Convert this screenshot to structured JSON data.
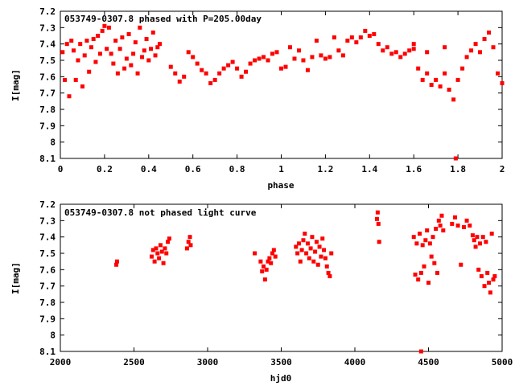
{
  "chart_data": [
    {
      "type": "scatter",
      "title": "053749-0307.8 phased with P=205.00day",
      "xlabel": "phase",
      "ylabel": "I[mag]",
      "xlim": [
        0,
        2
      ],
      "ylim": [
        7.2,
        8.1
      ],
      "y_inverted": true,
      "xticks": [
        0,
        0.2,
        0.4,
        0.6,
        0.8,
        1,
        1.2,
        1.4,
        1.6,
        1.8,
        2
      ],
      "xtick_labels": [
        "0",
        "0.2",
        "0.4",
        "0.6",
        "0.8",
        "1",
        "1.2",
        "1.4",
        "1.6",
        "1.8",
        "2"
      ],
      "yticks": [
        7.2,
        7.3,
        7.4,
        7.5,
        7.6,
        7.7,
        7.8,
        7.9,
        8,
        8.1
      ],
      "ytick_labels": [
        "7.2",
        "7.3",
        "7.4",
        "7.5",
        "7.6",
        "7.7",
        "7.8",
        "7.9",
        "8",
        "8.1"
      ],
      "grid": false,
      "marker_color": "#ff0000",
      "series": [
        {
          "points": [
            [
              0.01,
              7.45
            ],
            [
              0.02,
              7.62
            ],
            [
              0.03,
              7.4
            ],
            [
              0.04,
              7.72
            ],
            [
              0.05,
              7.38
            ],
            [
              0.06,
              7.44
            ],
            [
              0.07,
              7.62
            ],
            [
              0.08,
              7.5
            ],
            [
              0.09,
              7.4
            ],
            [
              0.1,
              7.66
            ],
            [
              0.11,
              7.47
            ],
            [
              0.12,
              7.38
            ],
            [
              0.13,
              7.57
            ],
            [
              0.14,
              7.42
            ],
            [
              0.15,
              7.37
            ],
            [
              0.16,
              7.51
            ],
            [
              0.17,
              7.35
            ],
            [
              0.18,
              7.46
            ],
            [
              0.19,
              7.32
            ],
            [
              0.2,
              7.29
            ],
            [
              0.21,
              7.43
            ],
            [
              0.22,
              7.3
            ],
            [
              0.23,
              7.46
            ],
            [
              0.24,
              7.52
            ],
            [
              0.25,
              7.38
            ],
            [
              0.26,
              7.58
            ],
            [
              0.27,
              7.43
            ],
            [
              0.28,
              7.36
            ],
            [
              0.29,
              7.55
            ],
            [
              0.3,
              7.49
            ],
            [
              0.31,
              7.34
            ],
            [
              0.32,
              7.53
            ],
            [
              0.33,
              7.46
            ],
            [
              0.34,
              7.39
            ],
            [
              0.35,
              7.58
            ],
            [
              0.36,
              7.3
            ],
            [
              0.37,
              7.48
            ],
            [
              0.38,
              7.44
            ],
            [
              0.39,
              7.37
            ],
            [
              0.4,
              7.5
            ],
            [
              0.41,
              7.43
            ],
            [
              0.42,
              7.33
            ],
            [
              0.43,
              7.47
            ],
            [
              0.44,
              7.42
            ],
            [
              0.45,
              7.4
            ],
            [
              0.5,
              7.54
            ],
            [
              0.52,
              7.58
            ],
            [
              0.54,
              7.63
            ],
            [
              0.56,
              7.6
            ],
            [
              0.58,
              7.45
            ],
            [
              0.6,
              7.48
            ],
            [
              0.62,
              7.52
            ],
            [
              0.64,
              7.56
            ],
            [
              0.66,
              7.58
            ],
            [
              0.68,
              7.64
            ],
            [
              0.7,
              7.62
            ],
            [
              0.72,
              7.58
            ],
            [
              0.74,
              7.55
            ],
            [
              0.76,
              7.53
            ],
            [
              0.78,
              7.51
            ],
            [
              0.8,
              7.55
            ],
            [
              0.82,
              7.6
            ],
            [
              0.84,
              7.57
            ],
            [
              0.86,
              7.52
            ],
            [
              0.88,
              7.5
            ],
            [
              0.9,
              7.49
            ],
            [
              0.92,
              7.48
            ],
            [
              0.94,
              7.5
            ],
            [
              0.96,
              7.46
            ],
            [
              0.98,
              7.45
            ],
            [
              1.0,
              7.55
            ],
            [
              1.02,
              7.54
            ],
            [
              1.04,
              7.42
            ],
            [
              1.06,
              7.49
            ],
            [
              1.08,
              7.44
            ],
            [
              1.1,
              7.5
            ],
            [
              1.12,
              7.56
            ],
            [
              1.14,
              7.48
            ],
            [
              1.16,
              7.38
            ],
            [
              1.18,
              7.47
            ],
            [
              1.2,
              7.49
            ],
            [
              1.22,
              7.48
            ],
            [
              1.24,
              7.36
            ],
            [
              1.26,
              7.44
            ],
            [
              1.28,
              7.47
            ],
            [
              1.3,
              7.38
            ],
            [
              1.32,
              7.36
            ],
            [
              1.34,
              7.39
            ],
            [
              1.36,
              7.36
            ],
            [
              1.38,
              7.32
            ],
            [
              1.4,
              7.35
            ],
            [
              1.42,
              7.34
            ],
            [
              1.44,
              7.4
            ],
            [
              1.46,
              7.44
            ],
            [
              1.48,
              7.42
            ],
            [
              1.5,
              7.46
            ],
            [
              1.52,
              7.45
            ],
            [
              1.54,
              7.48
            ],
            [
              1.56,
              7.46
            ],
            [
              1.58,
              7.44
            ],
            [
              1.6,
              7.43
            ],
            [
              1.62,
              7.55
            ],
            [
              1.64,
              7.62
            ],
            [
              1.66,
              7.58
            ],
            [
              1.68,
              7.65
            ],
            [
              1.7,
              7.62
            ],
            [
              1.72,
              7.66
            ],
            [
              1.74,
              7.58
            ],
            [
              1.76,
              7.68
            ],
            [
              1.78,
              7.74
            ],
            [
              1.8,
              7.62
            ],
            [
              1.82,
              7.55
            ],
            [
              1.84,
              7.48
            ],
            [
              1.86,
              7.44
            ],
            [
              1.88,
              7.4
            ],
            [
              1.9,
              7.45
            ],
            [
              1.92,
              7.37
            ],
            [
              1.94,
              7.33
            ],
            [
              1.96,
              7.42
            ],
            [
              1.98,
              7.58
            ],
            [
              2.0,
              7.64
            ],
            [
              1.79,
              8.1
            ],
            [
              1.6,
              7.4
            ],
            [
              1.66,
              7.45
            ],
            [
              1.74,
              7.42
            ]
          ]
        }
      ]
    },
    {
      "type": "scatter",
      "title": "053749-0307.8 not phased light curve",
      "xlabel": "hjd0",
      "ylabel": "I[mag]",
      "xlim": [
        2000,
        5000
      ],
      "ylim": [
        7.2,
        8.1
      ],
      "y_inverted": true,
      "xticks": [
        2000,
        2500,
        3000,
        3500,
        4000,
        4500,
        5000
      ],
      "xtick_labels": [
        "2000",
        "2500",
        "3000",
        "3500",
        "4000",
        "4500",
        "5000"
      ],
      "yticks": [
        7.2,
        7.3,
        7.4,
        7.5,
        7.6,
        7.7,
        7.8,
        7.9,
        8,
        8.1
      ],
      "ytick_labels": [
        "7.2",
        "7.3",
        "7.4",
        "7.5",
        "7.6",
        "7.7",
        "7.8",
        "7.9",
        "8",
        "8.1"
      ],
      "grid": false,
      "marker_color": "#ff0000",
      "series": [
        {
          "points": [
            [
              2380,
              7.57
            ],
            [
              2385,
              7.55
            ],
            [
              2620,
              7.52
            ],
            [
              2630,
              7.48
            ],
            [
              2640,
              7.55
            ],
            [
              2650,
              7.47
            ],
            [
              2660,
              7.5
            ],
            [
              2670,
              7.53
            ],
            [
              2680,
              7.45
            ],
            [
              2690,
              7.49
            ],
            [
              2700,
              7.56
            ],
            [
              2710,
              7.47
            ],
            [
              2720,
              7.5
            ],
            [
              2730,
              7.43
            ],
            [
              2740,
              7.41
            ],
            [
              2860,
              7.47
            ],
            [
              2870,
              7.43
            ],
            [
              2880,
              7.4
            ],
            [
              2885,
              7.45
            ],
            [
              3320,
              7.5
            ],
            [
              3360,
              7.55
            ],
            [
              3370,
              7.61
            ],
            [
              3380,
              7.58
            ],
            [
              3390,
              7.66
            ],
            [
              3400,
              7.6
            ],
            [
              3410,
              7.55
            ],
            [
              3420,
              7.53
            ],
            [
              3430,
              7.56
            ],
            [
              3440,
              7.5
            ],
            [
              3450,
              7.48
            ],
            [
              3460,
              7.52
            ],
            [
              3600,
              7.46
            ],
            [
              3610,
              7.5
            ],
            [
              3620,
              7.44
            ],
            [
              3630,
              7.55
            ],
            [
              3640,
              7.48
            ],
            [
              3650,
              7.42
            ],
            [
              3660,
              7.38
            ],
            [
              3670,
              7.5
            ],
            [
              3680,
              7.44
            ],
            [
              3690,
              7.53
            ],
            [
              3700,
              7.47
            ],
            [
              3710,
              7.4
            ],
            [
              3720,
              7.55
            ],
            [
              3730,
              7.49
            ],
            [
              3740,
              7.43
            ],
            [
              3750,
              7.57
            ],
            [
              3760,
              7.46
            ],
            [
              3770,
              7.52
            ],
            [
              3780,
              7.41
            ],
            [
              3790,
              7.48
            ],
            [
              3800,
              7.53
            ],
            [
              3810,
              7.58
            ],
            [
              3820,
              7.62
            ],
            [
              3830,
              7.64
            ],
            [
              3840,
              7.5
            ],
            [
              4150,
              7.29
            ],
            [
              4155,
              7.25
            ],
            [
              4160,
              7.32
            ],
            [
              4165,
              7.43
            ],
            [
              4400,
              7.4
            ],
            [
              4410,
              7.63
            ],
            [
              4420,
              7.44
            ],
            [
              4430,
              7.66
            ],
            [
              4440,
              7.38
            ],
            [
              4450,
              7.62
            ],
            [
              4460,
              7.45
            ],
            [
              4470,
              7.58
            ],
            [
              4480,
              7.42
            ],
            [
              4490,
              7.36
            ],
            [
              4500,
              7.68
            ],
            [
              4510,
              7.44
            ],
            [
              4520,
              7.52
            ],
            [
              4530,
              7.4
            ],
            [
              4540,
              7.56
            ],
            [
              4550,
              7.35
            ],
            [
              4560,
              7.62
            ],
            [
              4570,
              7.3
            ],
            [
              4580,
              7.33
            ],
            [
              4590,
              7.27
            ],
            [
              4600,
              7.36
            ],
            [
              4450,
              8.1
            ],
            [
              4660,
              7.32
            ],
            [
              4680,
              7.28
            ],
            [
              4700,
              7.33
            ],
            [
              4720,
              7.57
            ],
            [
              4740,
              7.34
            ],
            [
              4760,
              7.3
            ],
            [
              4780,
              7.33
            ],
            [
              4800,
              7.39
            ],
            [
              4810,
              7.42
            ],
            [
              4820,
              7.46
            ],
            [
              4830,
              7.4
            ],
            [
              4840,
              7.6
            ],
            [
              4850,
              7.44
            ],
            [
              4860,
              7.64
            ],
            [
              4870,
              7.4
            ],
            [
              4880,
              7.7
            ],
            [
              4890,
              7.43
            ],
            [
              4900,
              7.62
            ],
            [
              4910,
              7.68
            ],
            [
              4920,
              7.74
            ],
            [
              4930,
              7.38
            ],
            [
              4940,
              7.66
            ],
            [
              4950,
              7.64
            ]
          ]
        }
      ]
    }
  ]
}
